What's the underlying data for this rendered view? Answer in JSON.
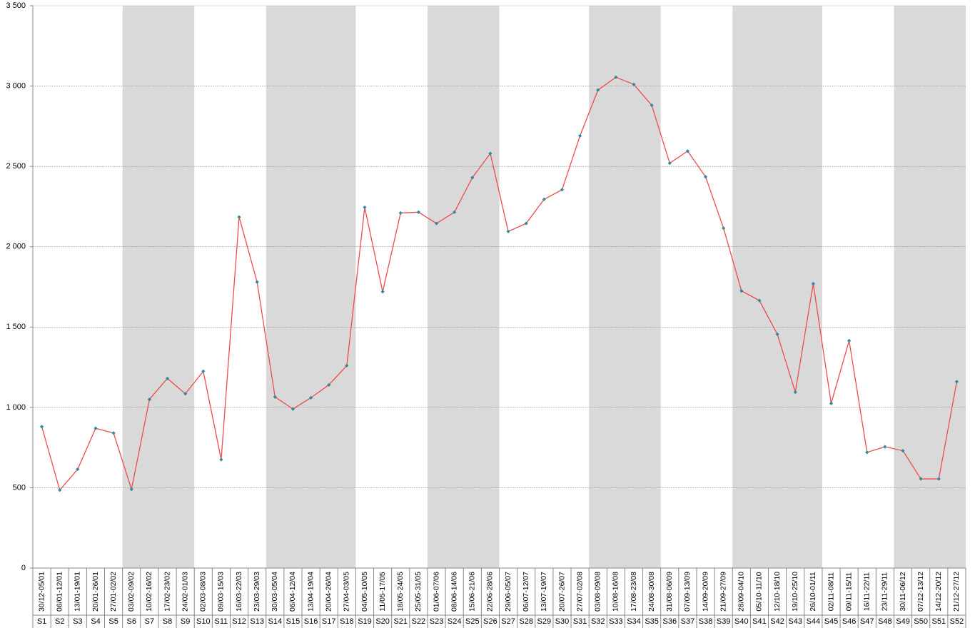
{
  "chart_data": {
    "type": "line",
    "categories": [
      "S1",
      "S2",
      "S3",
      "S4",
      "S5",
      "S6",
      "S7",
      "S8",
      "S9",
      "S10",
      "S11",
      "S12",
      "S13",
      "S14",
      "S15",
      "S16",
      "S17",
      "S18",
      "S19",
      "S20",
      "S21",
      "S22",
      "S23",
      "S24",
      "S25",
      "S26",
      "S27",
      "S28",
      "S29",
      "S30",
      "S31",
      "S32",
      "S33",
      "S34",
      "S35",
      "S36",
      "S37",
      "S38",
      "S39",
      "S40",
      "S41",
      "S42",
      "S43",
      "S44",
      "S45",
      "S46",
      "S47",
      "S48",
      "S49",
      "S50",
      "S51",
      "S52"
    ],
    "date_ranges": [
      "30/12-05/01",
      "06/01-12/01",
      "13/01-19/01",
      "20/01-26/01",
      "27/01-02/02",
      "03/02-09/02",
      "10/02-16/02",
      "17/02-23/02",
      "24/02-01/03",
      "02/03-08/03",
      "09/03-15/03",
      "16/03-22/03",
      "23/03-29/03",
      "30/03-05/04",
      "06/04-12/04",
      "13/04-19/04",
      "20/04-26/04",
      "27/04-03/05",
      "04/05-10/05",
      "11/05-17/05",
      "18/05-24/05",
      "25/05-31/05",
      "01/06-07/06",
      "08/06-14/06",
      "15/06-21/06",
      "22/06-28/06",
      "29/06-05/07",
      "06/07-12/07",
      "13/07-19/07",
      "20/07-26/07",
      "27/07-02/08",
      "03/08-09/08",
      "10/08-16/08",
      "17/08-23/08",
      "24/08-30/08",
      "31/08-06/09",
      "07/09-13/09",
      "14/09-20/09",
      "21/09-27/09",
      "28/09-04/10",
      "05/10-11/10",
      "12/10-18/10",
      "19/10-25/10",
      "26/10-01/11",
      "02/11-08/11",
      "09/11-15/11",
      "16/11-22/11",
      "23/11-29/11",
      "30/11-06/12",
      "07/12-13/12",
      "14/12-20/12",
      "21/12-27/12"
    ],
    "values": [
      880,
      485,
      615,
      870,
      840,
      490,
      1050,
      1180,
      1085,
      1225,
      675,
      2185,
      1780,
      1065,
      990,
      1060,
      1140,
      1260,
      2245,
      1720,
      2210,
      2215,
      2145,
      2215,
      2430,
      2580,
      2095,
      2145,
      2295,
      2355,
      2690,
      2975,
      3055,
      3010,
      2880,
      2520,
      2595,
      2435,
      2115,
      1725,
      1665,
      1455,
      1095,
      1770,
      1025,
      1415,
      720,
      755,
      730,
      555,
      555,
      1160
    ],
    "line_color": "#ee4b4b",
    "marker_color": "#2b8c9e",
    "shaded_ranges": [
      [
        5,
        8
      ],
      [
        13,
        17
      ],
      [
        22,
        25
      ],
      [
        31,
        34
      ],
      [
        39,
        43
      ],
      [
        48,
        51
      ]
    ],
    "shade_color": "#d9d9d9",
    "ylim": [
      0,
      3500
    ],
    "yticks": [
      0,
      500,
      {
        "value": 1000,
        "label": "1 000"
      },
      {
        "value": 1500,
        "label": "1 500"
      },
      {
        "value": 2000,
        "label": "2 000"
      },
      {
        "value": 2500,
        "label": "2 500"
      },
      {
        "value": 3000,
        "label": "3 000"
      },
      {
        "value": 3500,
        "label": "3 500"
      }
    ],
    "grid": true
  }
}
